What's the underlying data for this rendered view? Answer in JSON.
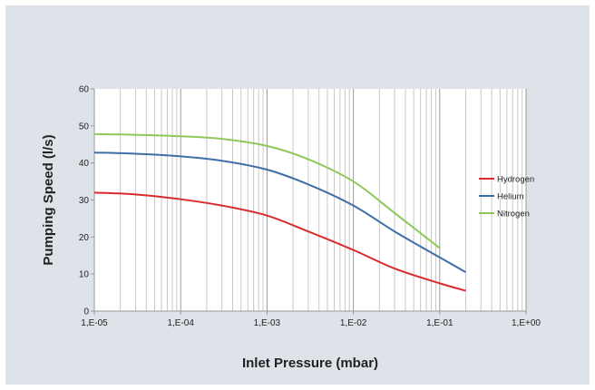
{
  "chart_data": {
    "type": "line",
    "title": "",
    "xlabel": "Inlet Pressure (mbar)",
    "ylabel": "Pumping Speed (l/s)",
    "xscale": "log",
    "xlim": [
      1e-05,
      1
    ],
    "ylim": [
      0,
      60
    ],
    "x_tick_labels": [
      "1,E-05",
      "1,E-04",
      "1,E-03",
      "1,E-02",
      "1,E-01",
      "1,E+00"
    ],
    "y_tick_labels": [
      "0",
      "10",
      "20",
      "30",
      "40",
      "50",
      "60"
    ],
    "grid": "vertical minor and major on log x axis",
    "legend_position": "right",
    "series": [
      {
        "name": "Hydrogen",
        "color": "#d92b2b",
        "x": [
          1e-05,
          3e-05,
          0.0001,
          0.0003,
          0.001,
          0.003,
          0.01,
          0.03,
          0.1,
          0.2
        ],
        "y": [
          32.0,
          31.5,
          30.2,
          28.5,
          25.8,
          21.5,
          16.5,
          11.5,
          7.5,
          5.5
        ]
      },
      {
        "name": "Helium",
        "color": "#3e6ea8",
        "x": [
          1e-05,
          3e-05,
          0.0001,
          0.0003,
          0.001,
          0.003,
          0.01,
          0.03,
          0.1,
          0.2
        ],
        "y": [
          42.8,
          42.5,
          41.8,
          40.6,
          38.2,
          34.2,
          28.5,
          21.5,
          14.5,
          10.5
        ]
      },
      {
        "name": "Nitrogen",
        "color": "#8fc85a",
        "x": [
          1e-05,
          3e-05,
          0.0001,
          0.0003,
          0.001,
          0.003,
          0.01,
          0.03,
          0.1
        ],
        "y": [
          47.8,
          47.6,
          47.2,
          46.5,
          44.6,
          41.0,
          35.0,
          26.5,
          17.0
        ]
      }
    ]
  }
}
